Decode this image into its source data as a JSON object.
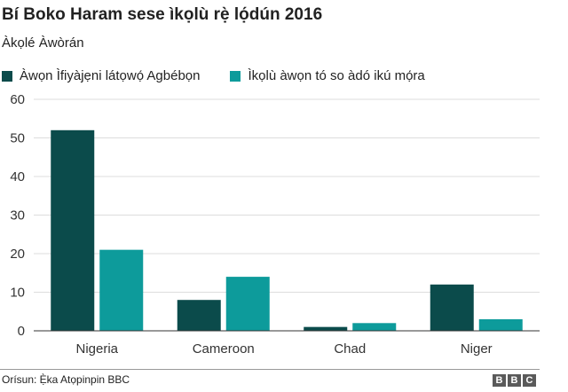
{
  "chart_data": {
    "type": "bar",
    "title": "Bí Boko Haram sese ìkọlù rẹ̀ lọ́dún 2016",
    "subtitle": "Àkọlé Àwòrán",
    "categories": [
      "Nigeria",
      "Cameroon",
      "Chad",
      "Niger"
    ],
    "series": [
      {
        "name": "Àwọn Ìfiyàjẹni látọwọ́ Agbébọn",
        "values": [
          52,
          8,
          1,
          12
        ],
        "color": "#0b4b4b"
      },
      {
        "name": "Ìkọlù àwọn tó so àdó ikú mọ́ra",
        "values": [
          21,
          14,
          2,
          3
        ],
        "color": "#0d9b9b"
      }
    ],
    "ylim": [
      0,
      60
    ],
    "yticks": [
      0,
      10,
      20,
      30,
      40,
      50,
      60
    ],
    "grid": true,
    "legend": "top-left"
  },
  "source": "Orísun: Ẹ̀ka Atọpinpin BBC",
  "logo": [
    "B",
    "B",
    "C"
  ]
}
